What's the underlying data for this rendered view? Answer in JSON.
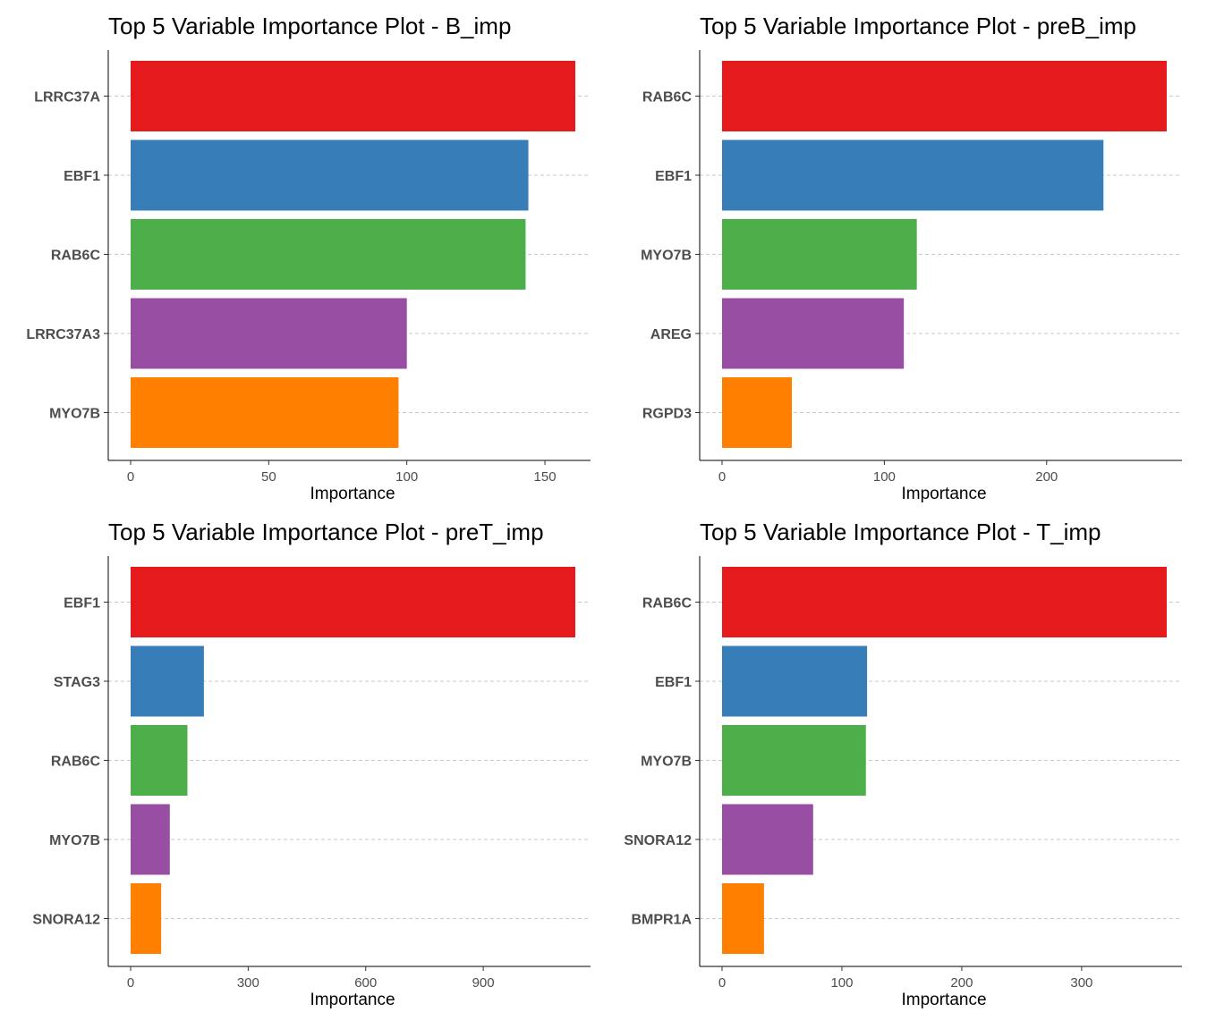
{
  "colors": [
    "#E41A1C",
    "#377EB8",
    "#4DAF4A",
    "#984EA3",
    "#FF7F00"
  ],
  "chart_data": [
    {
      "type": "bar",
      "orientation": "horizontal",
      "title": "Top 5 Variable Importance Plot - B_imp",
      "xlabel": "Importance",
      "categories": [
        "LRRC37A",
        "EBF1",
        "RAB6C",
        "LRRC37A3",
        "MYO7B"
      ],
      "values": [
        161,
        144,
        143,
        100,
        97
      ],
      "xticks": [
        0,
        50,
        100,
        150
      ],
      "xlim": [
        0,
        170
      ]
    },
    {
      "type": "bar",
      "orientation": "horizontal",
      "title": "Top 5 Variable Importance Plot - preB_imp",
      "xlabel": "Importance",
      "categories": [
        "RAB6C",
        "EBF1",
        "MYO7B",
        "AREG",
        "RGPD3"
      ],
      "values": [
        274,
        235,
        120,
        112,
        43
      ],
      "xticks": [
        0,
        100,
        200
      ],
      "xlim": [
        0,
        288
      ]
    },
    {
      "type": "bar",
      "orientation": "horizontal",
      "title": "Top 5 Variable Importance Plot - preT_imp",
      "xlabel": "Importance",
      "categories": [
        "EBF1",
        "STAG3",
        "RAB6C",
        "MYO7B",
        "SNORA12"
      ],
      "values": [
        1135,
        187,
        145,
        100,
        78
      ],
      "xticks": [
        0,
        300,
        600,
        900
      ],
      "xlim": [
        0,
        1197
      ]
    },
    {
      "type": "bar",
      "orientation": "horizontal",
      "title": "Top 5 Variable Importance Plot - T_imp",
      "xlabel": "Importance",
      "categories": [
        "RAB6C",
        "EBF1",
        "MYO7B",
        "SNORA12",
        "BMPR1A"
      ],
      "values": [
        371,
        121,
        120,
        76,
        35
      ],
      "xticks": [
        0,
        100,
        200,
        300
      ],
      "xlim": [
        0,
        390
      ]
    }
  ]
}
